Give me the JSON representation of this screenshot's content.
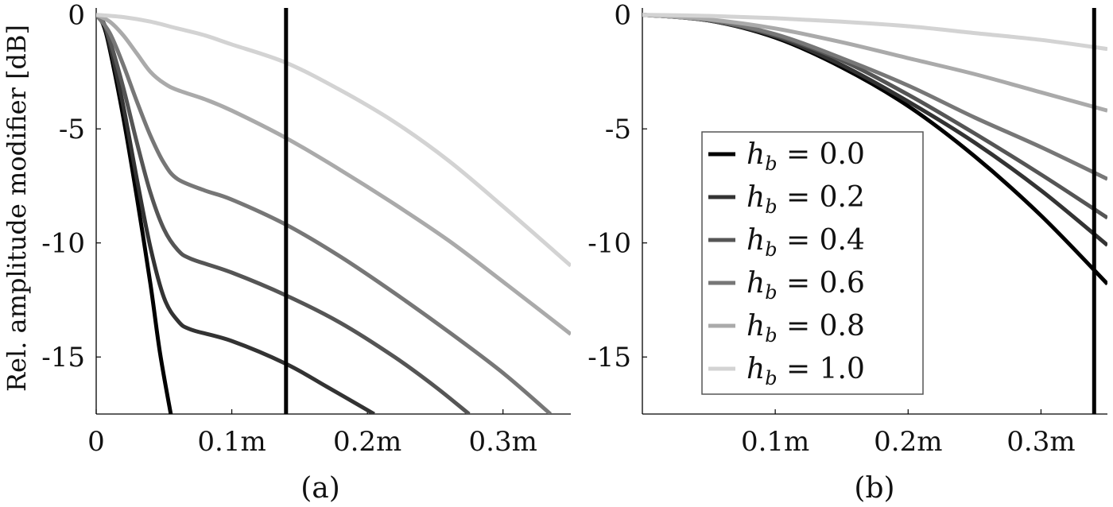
{
  "chart_data": [
    {
      "type": "line",
      "caption": "(a)",
      "ylabel": "Rel. amplitude modifier [dB]",
      "xlabel": "",
      "xlim": [
        0,
        0.35
      ],
      "ylim": [
        -17.5,
        0.3
      ],
      "xticks": [
        0,
        0.1,
        0.2,
        0.3
      ],
      "xtick_labels": [
        "0",
        "0.1m",
        "0.2m",
        "0.3m"
      ],
      "yticks": [
        0,
        -5,
        -10,
        -15
      ],
      "ytick_labels": [
        "0",
        "-5",
        "-10",
        "-15"
      ],
      "vline_x": 0.14,
      "series": [
        {
          "color": "#000000",
          "points": [
            [
              0,
              0
            ],
            [
              0.005,
              -0.4
            ],
            [
              0.01,
              -1.5
            ],
            [
              0.02,
              -4.5
            ],
            [
              0.03,
              -8.0
            ],
            [
              0.04,
              -11.8
            ],
            [
              0.047,
              -14.8
            ],
            [
              0.055,
              -17.5
            ]
          ]
        },
        {
          "color": "#333333",
          "points": [
            [
              0,
              0
            ],
            [
              0.005,
              -0.3
            ],
            [
              0.01,
              -1.3
            ],
            [
              0.02,
              -4.0
            ],
            [
              0.03,
              -7.2
            ],
            [
              0.04,
              -10.2
            ],
            [
              0.05,
              -12.4
            ],
            [
              0.06,
              -13.4
            ],
            [
              0.07,
              -13.8
            ],
            [
              0.1,
              -14.3
            ],
            [
              0.14,
              -15.3
            ],
            [
              0.17,
              -16.3
            ],
            [
              0.205,
              -17.5
            ]
          ]
        },
        {
          "color": "#555555",
          "points": [
            [
              0,
              0
            ],
            [
              0.005,
              -0.3
            ],
            [
              0.01,
              -1.1
            ],
            [
              0.02,
              -3.2
            ],
            [
              0.03,
              -5.6
            ],
            [
              0.04,
              -7.8
            ],
            [
              0.05,
              -9.4
            ],
            [
              0.06,
              -10.3
            ],
            [
              0.07,
              -10.7
            ],
            [
              0.1,
              -11.3
            ],
            [
              0.14,
              -12.3
            ],
            [
              0.18,
              -13.5
            ],
            [
              0.22,
              -15.0
            ],
            [
              0.25,
              -16.3
            ],
            [
              0.275,
              -17.5
            ]
          ]
        },
        {
          "color": "#777777",
          "points": [
            [
              0,
              0
            ],
            [
              0.01,
              -0.8
            ],
            [
              0.02,
              -2.2
            ],
            [
              0.03,
              -3.8
            ],
            [
              0.04,
              -5.3
            ],
            [
              0.05,
              -6.5
            ],
            [
              0.06,
              -7.2
            ],
            [
              0.08,
              -7.7
            ],
            [
              0.1,
              -8.1
            ],
            [
              0.14,
              -9.2
            ],
            [
              0.18,
              -10.6
            ],
            [
              0.22,
              -12.2
            ],
            [
              0.26,
              -13.9
            ],
            [
              0.3,
              -15.7
            ],
            [
              0.335,
              -17.5
            ]
          ]
        },
        {
          "color": "#aaaaaa",
          "points": [
            [
              0,
              0
            ],
            [
              0.01,
              -0.3
            ],
            [
              0.02,
              -0.9
            ],
            [
              0.03,
              -1.7
            ],
            [
              0.04,
              -2.5
            ],
            [
              0.05,
              -3.0
            ],
            [
              0.06,
              -3.3
            ],
            [
              0.08,
              -3.7
            ],
            [
              0.1,
              -4.2
            ],
            [
              0.14,
              -5.4
            ],
            [
              0.18,
              -6.8
            ],
            [
              0.22,
              -8.3
            ],
            [
              0.26,
              -9.9
            ],
            [
              0.3,
              -11.7
            ],
            [
              0.35,
              -14.0
            ]
          ]
        },
        {
          "color": "#d3d3d3",
          "points": [
            [
              0,
              0
            ],
            [
              0.02,
              -0.1
            ],
            [
              0.04,
              -0.3
            ],
            [
              0.06,
              -0.6
            ],
            [
              0.08,
              -0.9
            ],
            [
              0.1,
              -1.3
            ],
            [
              0.14,
              -2.1
            ],
            [
              0.18,
              -3.3
            ],
            [
              0.22,
              -4.7
            ],
            [
              0.26,
              -6.4
            ],
            [
              0.3,
              -8.4
            ],
            [
              0.35,
              -11.0
            ]
          ]
        }
      ]
    },
    {
      "type": "line",
      "caption": "(b)",
      "ylabel": "",
      "xlabel": "",
      "xlim": [
        0,
        0.35
      ],
      "ylim": [
        -17.5,
        0.3
      ],
      "xticks": [
        0.1,
        0.2,
        0.3
      ],
      "xtick_labels": [
        "0.1m",
        "0.2m",
        "0.3m"
      ],
      "yticks": [
        0,
        -5,
        -10,
        -15
      ],
      "ytick_labels": [
        "0",
        "-5",
        "-10",
        "-15"
      ],
      "vline_x": 0.34,
      "legend": {
        "position": "center-left",
        "entries": [
          {
            "prefix": "h",
            "sub": "b",
            "rest": " = 0.0",
            "color": "#000000"
          },
          {
            "prefix": "h",
            "sub": "b",
            "rest": " = 0.2",
            "color": "#333333"
          },
          {
            "prefix": "h",
            "sub": "b",
            "rest": " = 0.4",
            "color": "#555555"
          },
          {
            "prefix": "h",
            "sub": "b",
            "rest": " = 0.6",
            "color": "#777777"
          },
          {
            "prefix": "h",
            "sub": "b",
            "rest": " = 0.8",
            "color": "#aaaaaa"
          },
          {
            "prefix": "h",
            "sub": "b",
            "rest": " = 1.0",
            "color": "#d3d3d3"
          }
        ]
      },
      "series": [
        {
          "color": "#000000",
          "points": [
            [
              0,
              0
            ],
            [
              0.05,
              -0.25
            ],
            [
              0.1,
              -1.0
            ],
            [
              0.15,
              -2.3
            ],
            [
              0.2,
              -4.0
            ],
            [
              0.25,
              -6.2
            ],
            [
              0.3,
              -8.8
            ],
            [
              0.35,
              -11.8
            ]
          ]
        },
        {
          "color": "#333333",
          "points": [
            [
              0,
              0
            ],
            [
              0.05,
              -0.25
            ],
            [
              0.1,
              -0.95
            ],
            [
              0.15,
              -2.2
            ],
            [
              0.2,
              -3.8
            ],
            [
              0.25,
              -5.6
            ],
            [
              0.3,
              -7.7
            ],
            [
              0.35,
              -10.1
            ]
          ]
        },
        {
          "color": "#555555",
          "points": [
            [
              0,
              0
            ],
            [
              0.05,
              -0.24
            ],
            [
              0.1,
              -0.9
            ],
            [
              0.15,
              -2.0
            ],
            [
              0.2,
              -3.5
            ],
            [
              0.25,
              -5.2
            ],
            [
              0.3,
              -7.0
            ],
            [
              0.35,
              -8.9
            ]
          ]
        },
        {
          "color": "#777777",
          "points": [
            [
              0,
              0
            ],
            [
              0.05,
              -0.22
            ],
            [
              0.1,
              -0.85
            ],
            [
              0.15,
              -1.9
            ],
            [
              0.2,
              -3.1
            ],
            [
              0.25,
              -4.5
            ],
            [
              0.3,
              -5.8
            ],
            [
              0.35,
              -7.2
            ]
          ]
        },
        {
          "color": "#aaaaaa",
          "points": [
            [
              0,
              0
            ],
            [
              0.05,
              -0.2
            ],
            [
              0.1,
              -0.6
            ],
            [
              0.15,
              -1.2
            ],
            [
              0.2,
              -1.9
            ],
            [
              0.25,
              -2.6
            ],
            [
              0.3,
              -3.4
            ],
            [
              0.35,
              -4.2
            ]
          ]
        },
        {
          "color": "#d3d3d3",
          "points": [
            [
              0,
              0
            ],
            [
              0.05,
              -0.05
            ],
            [
              0.1,
              -0.15
            ],
            [
              0.15,
              -0.3
            ],
            [
              0.2,
              -0.5
            ],
            [
              0.25,
              -0.8
            ],
            [
              0.3,
              -1.1
            ],
            [
              0.35,
              -1.5
            ]
          ]
        }
      ]
    }
  ]
}
